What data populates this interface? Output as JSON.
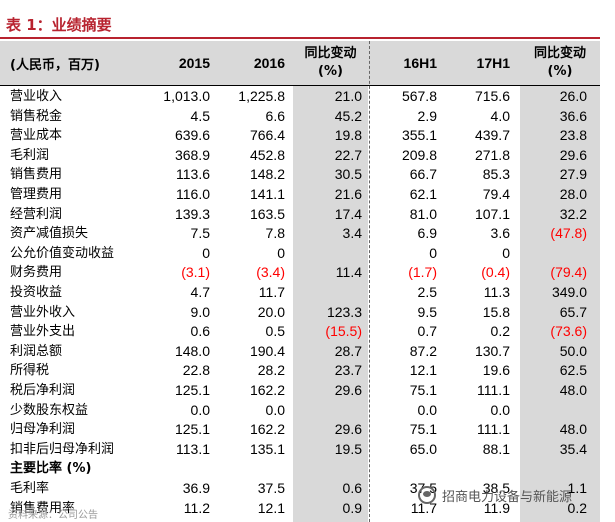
{
  "title": "表 1：业绩摘要",
  "header": {
    "label": "(人民币，百万)",
    "col_2015": "2015",
    "col_2016": "2016",
    "yoy_line1": "同比变动",
    "yoy_line2": "(%)",
    "col_16h1": "16H1",
    "col_17h1": "17H1"
  },
  "rows": [
    {
      "label": "营业收入",
      "v2015": "1,013.0",
      "v2016": "1,225.8",
      "yoy1": "21.0",
      "h16": "567.8",
      "h17": "715.6",
      "yoy2": "26.0"
    },
    {
      "label": "销售税金",
      "v2015": "4.5",
      "v2016": "6.6",
      "yoy1": "45.2",
      "h16": "2.9",
      "h17": "4.0",
      "yoy2": "36.6"
    },
    {
      "label": "营业成本",
      "v2015": "639.6",
      "v2016": "766.4",
      "yoy1": "19.8",
      "h16": "355.1",
      "h17": "439.7",
      "yoy2": "23.8"
    },
    {
      "label": "毛利润",
      "v2015": "368.9",
      "v2016": "452.8",
      "yoy1": "22.7",
      "h16": "209.8",
      "h17": "271.8",
      "yoy2": "29.6"
    },
    {
      "label": "销售费用",
      "v2015": "113.6",
      "v2016": "148.2",
      "yoy1": "30.5",
      "h16": "66.7",
      "h17": "85.3",
      "yoy2": "27.9"
    },
    {
      "label": "管理费用",
      "v2015": "116.0",
      "v2016": "141.1",
      "yoy1": "21.6",
      "h16": "62.1",
      "h17": "79.4",
      "yoy2": "28.0"
    },
    {
      "label": "经营利润",
      "v2015": "139.3",
      "v2016": "163.5",
      "yoy1": "17.4",
      "h16": "81.0",
      "h17": "107.1",
      "yoy2": "32.2"
    },
    {
      "label": "资产减值损失",
      "v2015": "7.5",
      "v2016": "7.8",
      "yoy1": "3.4",
      "h16": "6.9",
      "h17": "3.6",
      "yoy2": "(47.8)"
    },
    {
      "label": "公允价值变动收益",
      "v2015": "0",
      "v2016": "0",
      "yoy1": "",
      "h16": "0",
      "h17": "0",
      "yoy2": ""
    },
    {
      "label": "财务费用",
      "v2015": "(3.1)",
      "v2016": "(3.4)",
      "yoy1": "11.4",
      "h16": "(1.7)",
      "h17": "(0.4)",
      "yoy2": "(79.4)"
    },
    {
      "label": "投资收益",
      "v2015": "4.7",
      "v2016": "11.7",
      "yoy1": "",
      "h16": "2.5",
      "h17": "11.3",
      "yoy2": "349.0"
    },
    {
      "label": "营业外收入",
      "v2015": "9.0",
      "v2016": "20.0",
      "yoy1": "123.3",
      "h16": "9.5",
      "h17": "15.8",
      "yoy2": "65.7"
    },
    {
      "label": "营业外支出",
      "v2015": "0.6",
      "v2016": "0.5",
      "yoy1": "(15.5)",
      "h16": "0.7",
      "h17": "0.2",
      "yoy2": "(73.6)"
    },
    {
      "label": "利润总额",
      "v2015": "148.0",
      "v2016": "190.4",
      "yoy1": "28.7",
      "h16": "87.2",
      "h17": "130.7",
      "yoy2": "50.0"
    },
    {
      "label": "所得税",
      "v2015": "22.8",
      "v2016": "28.2",
      "yoy1": "23.7",
      "h16": "12.1",
      "h17": "19.6",
      "yoy2": "62.5"
    },
    {
      "label": "税后净利润",
      "v2015": "125.1",
      "v2016": "162.2",
      "yoy1": "29.6",
      "h16": "75.1",
      "h17": "111.1",
      "yoy2": "48.0"
    },
    {
      "label": "少数股东权益",
      "v2015": "0.0",
      "v2016": "0.0",
      "yoy1": "",
      "h16": "0.0",
      "h17": "0.0",
      "yoy2": ""
    },
    {
      "label": "归母净利润",
      "v2015": "125.1",
      "v2016": "162.2",
      "yoy1": "29.6",
      "h16": "75.1",
      "h17": "111.1",
      "yoy2": "48.0"
    },
    {
      "label": "扣非后归母净利润",
      "v2015": "113.1",
      "v2016": "135.1",
      "yoy1": "19.5",
      "h16": "65.0",
      "h17": "88.1",
      "yoy2": "35.4"
    },
    {
      "label": "主要比率 (%)",
      "v2015": "",
      "v2016": "",
      "yoy1": "",
      "h16": "",
      "h17": "",
      "yoy2": "",
      "bold": true
    },
    {
      "label": "毛利率",
      "v2015": "36.9",
      "v2016": "37.5",
      "yoy1": "0.6",
      "h16": "37.5",
      "h17": "38.5",
      "yoy2": "1.1"
    },
    {
      "label": "销售费用率",
      "v2015": "11.2",
      "v2016": "12.1",
      "yoy1": "0.9",
      "h16": "11.7",
      "h17": "11.9",
      "yoy2": "0.2"
    }
  ],
  "watermark": "招商电力设备与新能源",
  "watermark_small": "资料来源：公司公告",
  "colors": {
    "accent": "#b8232f",
    "negative": "#ff0000",
    "shade": "#d9d9d9"
  }
}
